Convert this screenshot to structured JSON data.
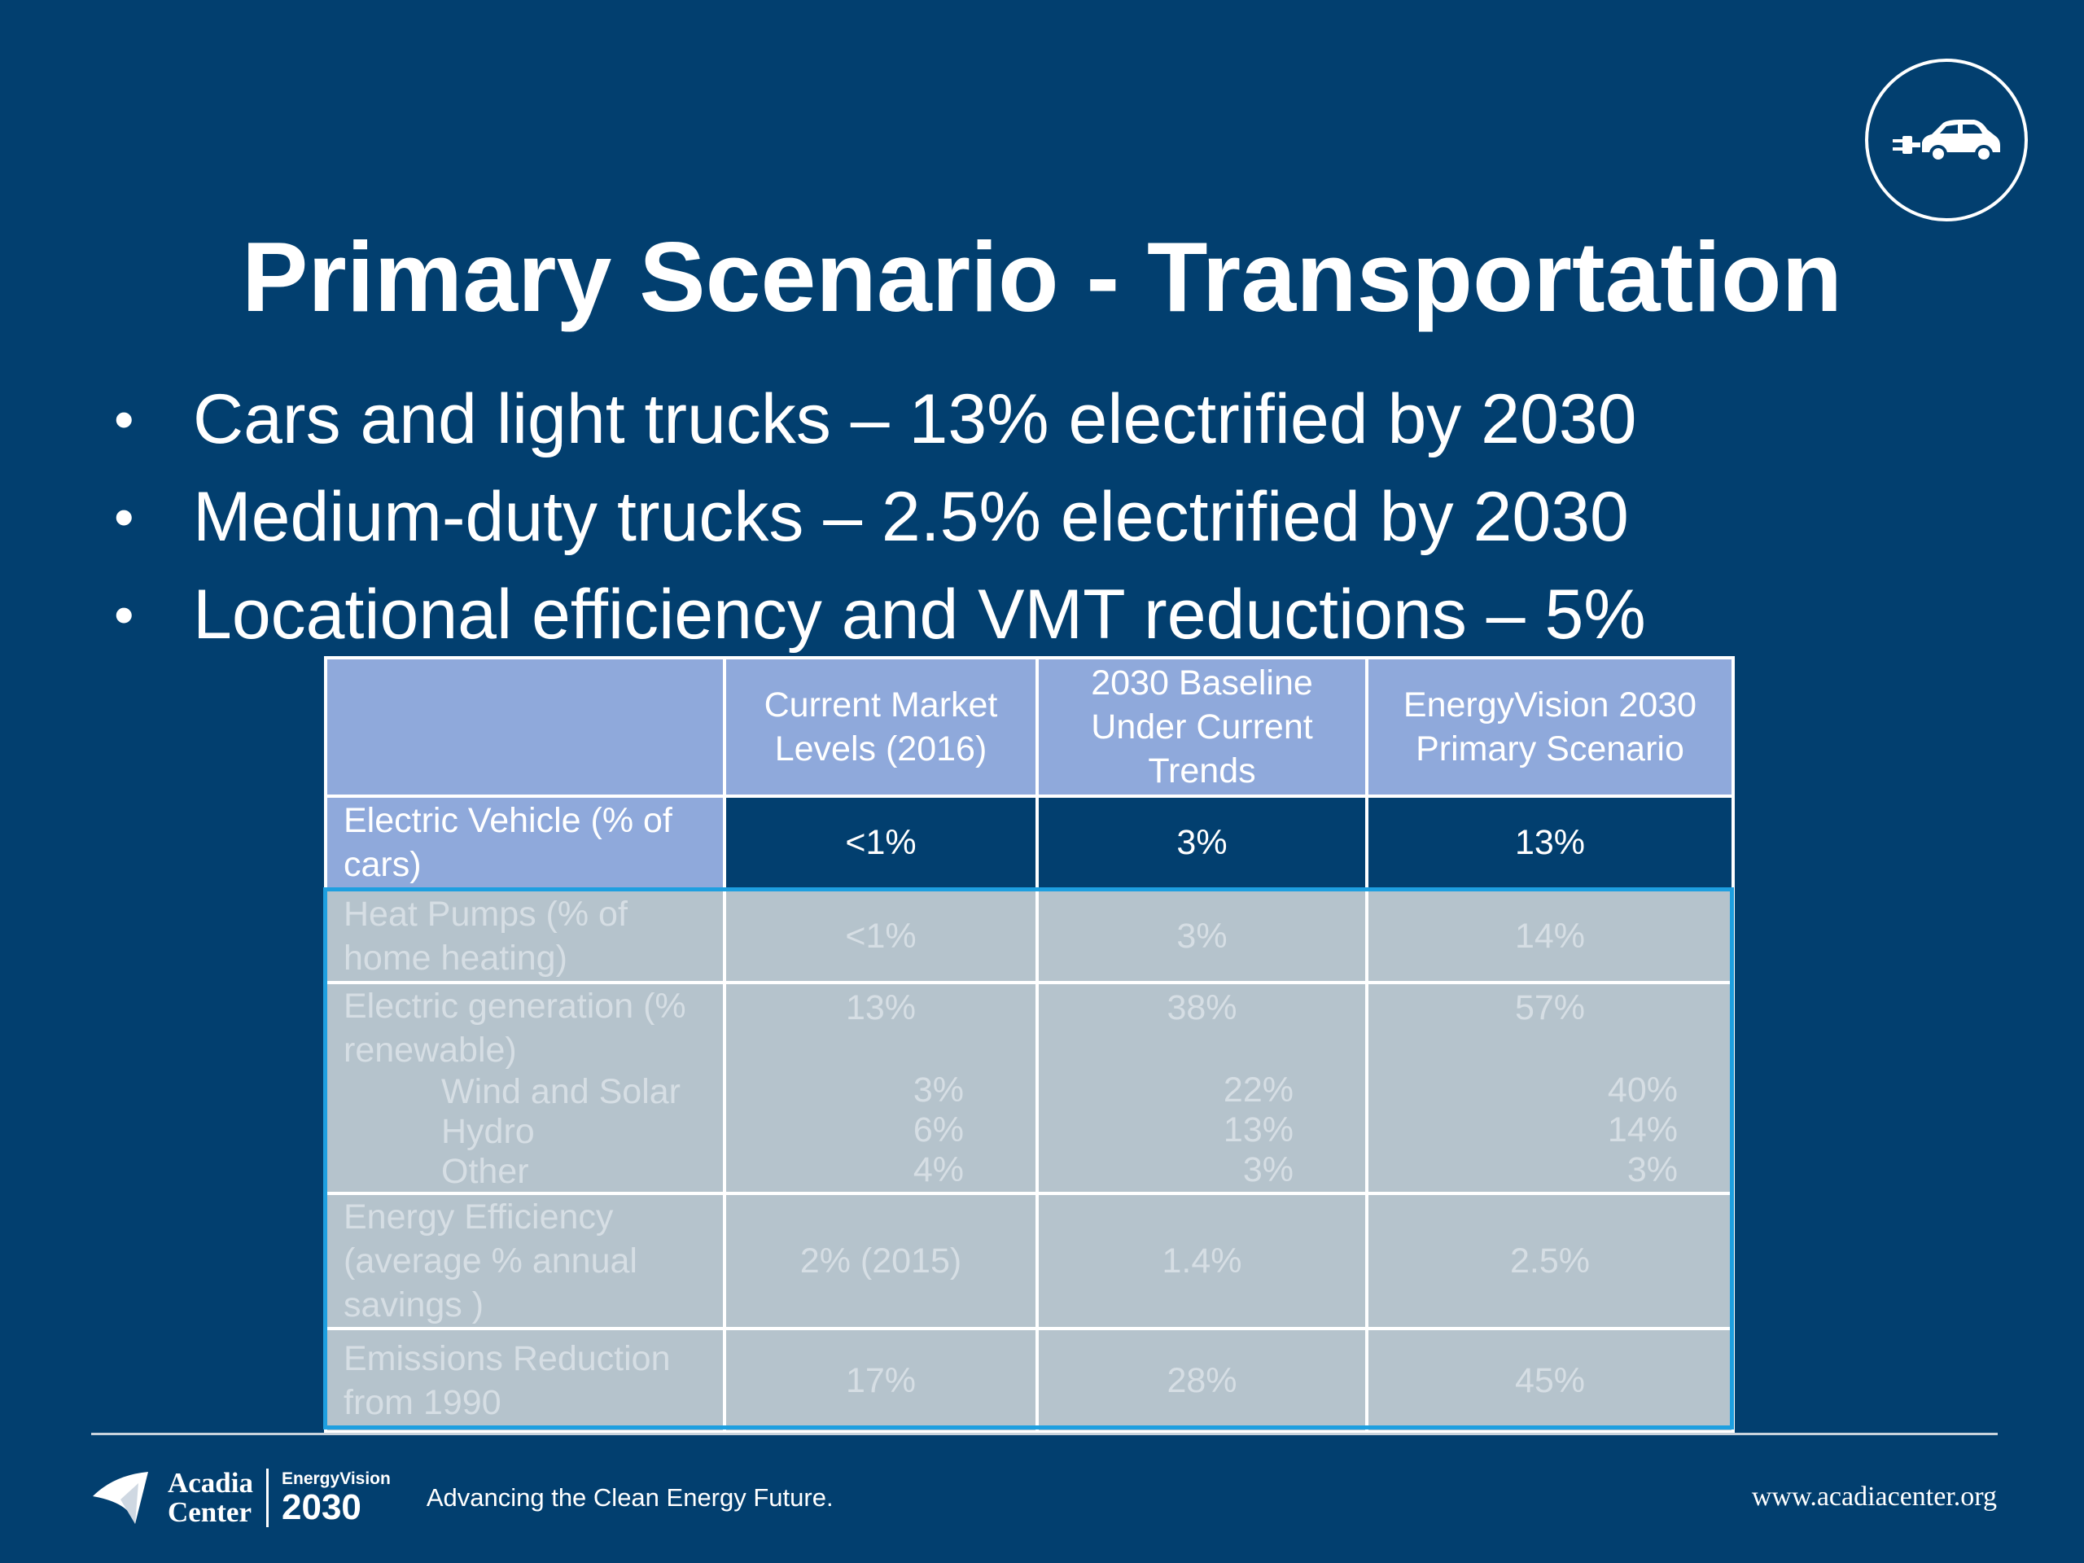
{
  "slide": {
    "title": "Primary Scenario - Transportation",
    "bullet_marker": "•",
    "bullets": [
      "Cars and light trucks – 13% electrified by 2030",
      "Medium-duty trucks – 2.5% electrified by 2030",
      "Locational efficiency and VMT reductions – 5%"
    ]
  },
  "table": {
    "headers": [
      "",
      "Current Market Levels (2016)",
      "2030 Baseline Under Current Trends",
      "EnergyVision 2030 Primary Scenario"
    ],
    "rows": {
      "ev": {
        "label": "Electric Vehicle (% of cars)",
        "values": [
          "<1%",
          "3%",
          "13%"
        ]
      },
      "heat_pumps": {
        "label": "Heat Pumps (% of home heating)",
        "values": [
          "<1%",
          "3%",
          "14%"
        ]
      },
      "generation": {
        "label": "Electric generation (% renewable)",
        "values": [
          "13%",
          "38%",
          "57%"
        ],
        "sub": [
          {
            "label": "Wind and Solar",
            "values": [
              "3%",
              "22%",
              "40%"
            ]
          },
          {
            "label": "Hydro",
            "values": [
              "6%",
              "13%",
              "14%"
            ]
          },
          {
            "label": "Other",
            "values": [
              "4%",
              "3%",
              "3%"
            ]
          }
        ]
      },
      "efficiency": {
        "label": "Energy Efficiency (average % annual savings )",
        "values": [
          "2% (2015)",
          "1.4%",
          "2.5%"
        ]
      },
      "emissions": {
        "label": "Emissions Reduction from 1990",
        "values": [
          "17%",
          "28%",
          "45%"
        ]
      }
    }
  },
  "footer": {
    "brand_line1": "Acadia",
    "brand_line2": "Center",
    "ev_brand_top": "EnergyVision",
    "ev_brand_year": "2030",
    "tagline": "Advancing the Clean Energy Future.",
    "url": "www.acadiacenter.org"
  },
  "colors": {
    "background": "#023f6f",
    "header_fill": "#8fa9db",
    "faded_fill": "#b5c3cc",
    "highlight_border": "#1e9fe0"
  },
  "icons": {
    "sector_icon": "electric-car-plug-icon",
    "brand_mark": "acadia-sail-icon"
  }
}
